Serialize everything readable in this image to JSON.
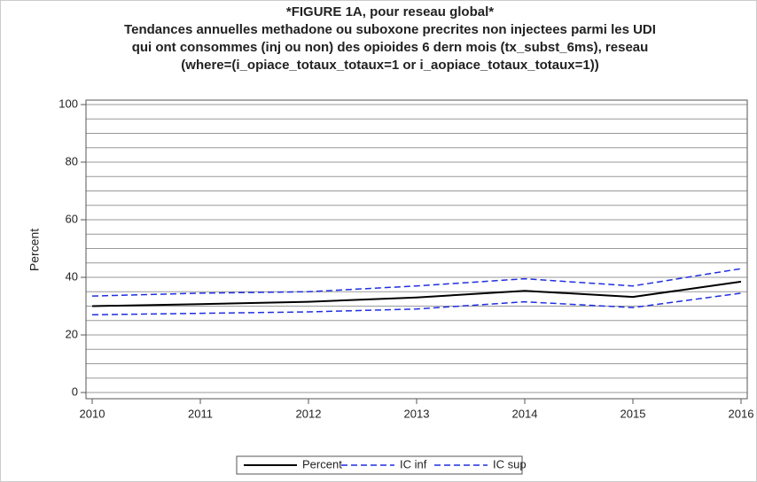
{
  "chart_data": {
    "type": "line",
    "title": [
      "*FIGURE 1A, pour reseau global*",
      "Tendances annuelles methadone ou suboxone precrites non injectees parmi les UDI",
      "qui ont consommes (inj ou non) des opioides 6 dern mois (tx_subst_6ms), reseau",
      "(where=(i_opiace_totaux_totaux=1 or i_aopiace_totaux_totaux=1))"
    ],
    "y_label": "Percent",
    "x": [
      2010,
      2011,
      2012,
      2013,
      2014,
      2015,
      2016
    ],
    "xlim": [
      2010,
      2016
    ],
    "xticks": [
      2010,
      2011,
      2012,
      2013,
      2014,
      2015,
      2016
    ],
    "ylim": [
      0,
      100
    ],
    "yticks": [
      0,
      20,
      40,
      60,
      80,
      100
    ],
    "ygrid": [
      0,
      5,
      10,
      15,
      20,
      25,
      30,
      35,
      40,
      45,
      50,
      55,
      60,
      65,
      70,
      75,
      80,
      85,
      90,
      95,
      100
    ],
    "series": [
      {
        "name": "Percent",
        "color": "#000000",
        "dash": false,
        "values": [
          30,
          30.7,
          31.5,
          33,
          35.3,
          33.2,
          38.5
        ]
      },
      {
        "name": "IC inf",
        "color": "#1f2ee0",
        "dash": true,
        "values": [
          27,
          27.5,
          28,
          29,
          31.5,
          29.5,
          34.5
        ]
      },
      {
        "name": "IC sup",
        "color": "#1f2ee0",
        "dash": true,
        "values": [
          33.5,
          34.5,
          35,
          37,
          39.5,
          37,
          43
        ]
      }
    ]
  }
}
